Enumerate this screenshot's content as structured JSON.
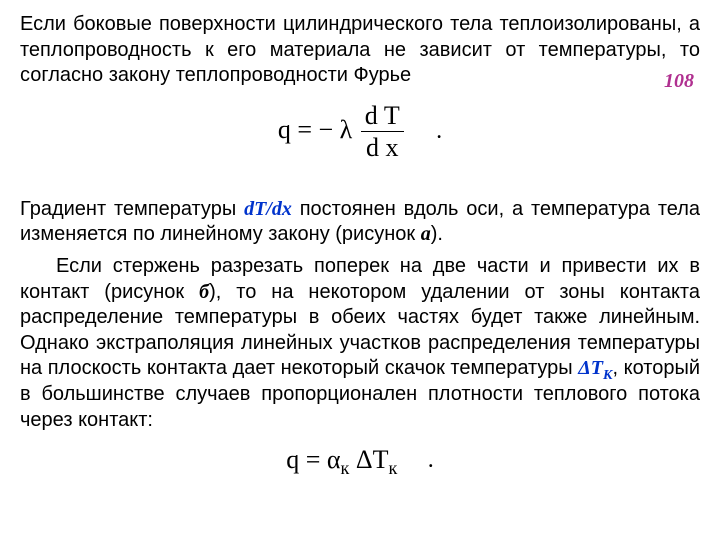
{
  "pageNumber": {
    "text": "108",
    "color": "#b03090",
    "fontSize": 20
  },
  "para1": {
    "parts": [
      "Если боковые поверхности цилиндрического тела теплоизолированы, а теплопроводность к его материала не зависит от температуры, то согласно закону теплопроводности Фурье"
    ]
  },
  "formula1": {
    "lhs": "q",
    "eq": " = ",
    "minus": "− ",
    "lambda": "λ",
    "frac": {
      "num_d": "d",
      "num_v": "T",
      "den_d": "d",
      "den_v": "x"
    },
    "period": "."
  },
  "para2": {
    "t1": "Градиент температуры ",
    "grad": {
      "text": "dT/dx",
      "color": "#0033cc"
    },
    "t2": " постоянен вдоль оси, а температура тела изменяется по линейному закону (рисунок ",
    "figA": "а",
    "t3": ")."
  },
  "para3": {
    "t1": "Если стержень разрезать поперек на две части и привести их в контакт (рисунок ",
    "figB": "б",
    "t2": "), то на некотором удалении от зоны контакта распределение температуры в обеих частях будет также линейным. Однако экстраполяция линейных участков распределения температуры на плоскость контакта дает некоторый скачок температуры ",
    "dTk": {
      "delta": "Δ",
      "T": "T",
      "K": "К",
      "color": "#0033cc"
    },
    "t3": ", который в большинстве случаев пропорционален плотности теплового потока через контакт:"
  },
  "formula2": {
    "lhs": "q",
    "eq": " = ",
    "alpha": "α",
    "sub1": "к",
    "space": "  ",
    "delta": "Δ",
    "T": "T",
    "sub2": "к",
    "period": "."
  },
  "style": {
    "body_fontsize": 20,
    "formula_fontsize": 26,
    "text_color": "#000000",
    "background": "#ffffff"
  }
}
